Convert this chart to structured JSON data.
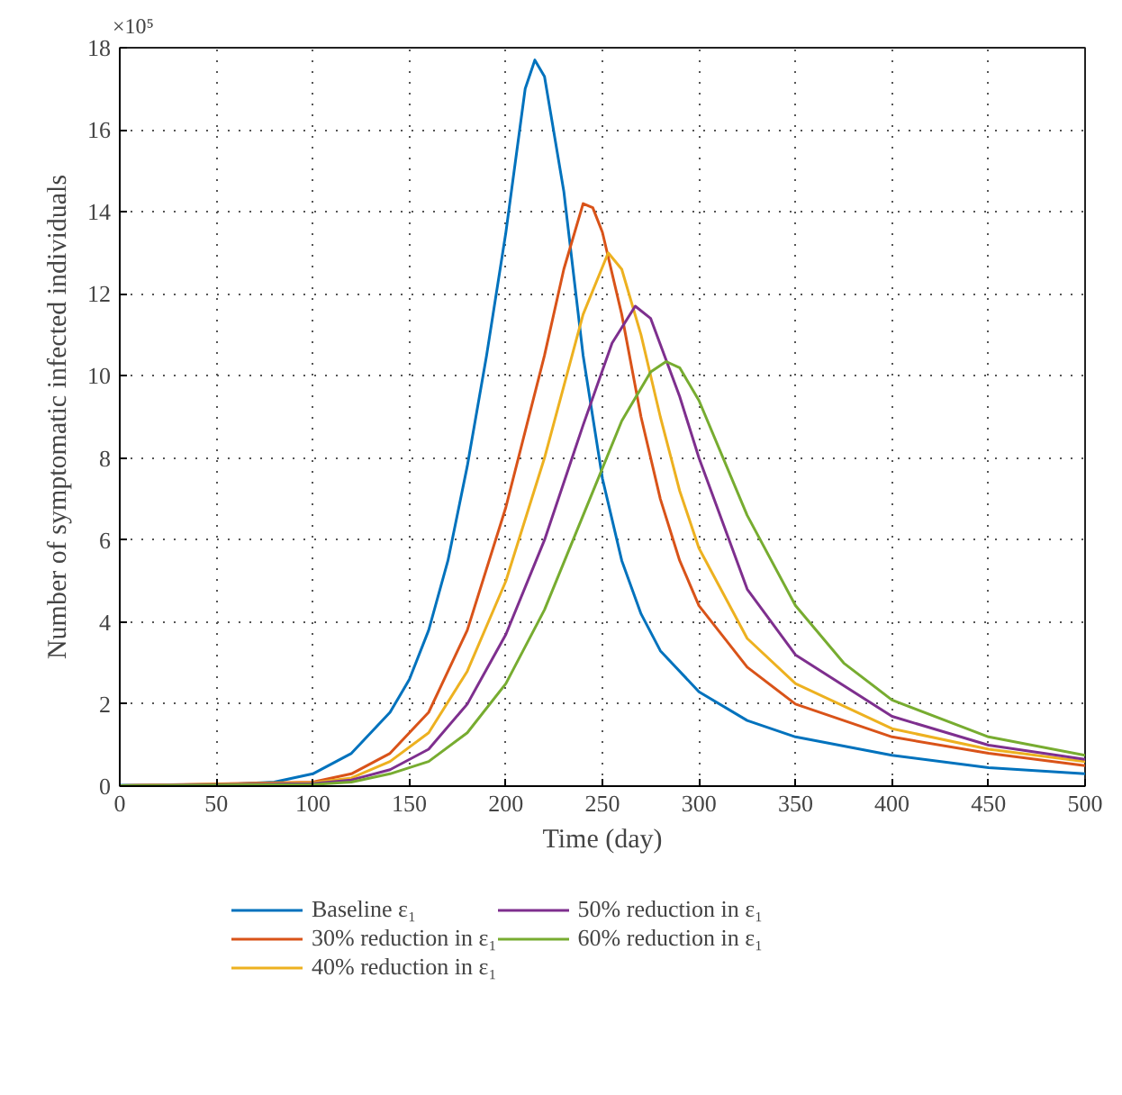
{
  "chart_data": {
    "type": "line",
    "xlabel": "Time (day)",
    "ylabel": "Number of symptomatic infected individuals",
    "annotations": [
      "×10⁵"
    ],
    "xlim": [
      0,
      500
    ],
    "ylim": [
      0,
      18
    ],
    "xticks": [
      0,
      50,
      100,
      150,
      200,
      250,
      300,
      350,
      400,
      450,
      500
    ],
    "yticks": [
      0,
      2,
      4,
      6,
      8,
      10,
      12,
      14,
      16,
      18
    ],
    "grid": true,
    "legend": "bottom",
    "line_style": "solid",
    "series": [
      {
        "name": "Baseline ε₁",
        "color": "#0072bd",
        "x": [
          0,
          50,
          80,
          100,
          120,
          140,
          150,
          160,
          170,
          180,
          190,
          200,
          210,
          215,
          220,
          230,
          240,
          250,
          260,
          270,
          280,
          300,
          325,
          350,
          400,
          450,
          500
        ],
        "values": [
          0.02,
          0.03,
          0.1,
          0.3,
          0.8,
          1.8,
          2.6,
          3.8,
          5.5,
          7.8,
          10.5,
          13.5,
          17.0,
          17.7,
          17.3,
          14.5,
          10.5,
          7.5,
          5.5,
          4.2,
          3.3,
          2.3,
          1.6,
          1.2,
          0.75,
          0.45,
          0.3
        ]
      },
      {
        "name": "30% reduction in ε₁",
        "color": "#d95319",
        "x": [
          0,
          100,
          120,
          140,
          160,
          180,
          200,
          220,
          230,
          240,
          245,
          250,
          260,
          270,
          280,
          290,
          300,
          325,
          350,
          400,
          450,
          500
        ],
        "values": [
          0.01,
          0.1,
          0.3,
          0.8,
          1.8,
          3.8,
          6.8,
          10.5,
          12.6,
          14.2,
          14.1,
          13.5,
          11.5,
          9.0,
          7.0,
          5.5,
          4.4,
          2.9,
          2.0,
          1.2,
          0.8,
          0.5
        ]
      },
      {
        "name": "40% reduction in ε₁",
        "color": "#edb120",
        "x": [
          0,
          100,
          120,
          140,
          160,
          180,
          200,
          220,
          240,
          253,
          260,
          270,
          280,
          290,
          300,
          325,
          350,
          400,
          450,
          500
        ],
        "values": [
          0.01,
          0.08,
          0.2,
          0.6,
          1.3,
          2.8,
          5.0,
          8.0,
          11.5,
          13.0,
          12.6,
          11.0,
          9.0,
          7.2,
          5.8,
          3.6,
          2.5,
          1.4,
          0.9,
          0.6
        ]
      },
      {
        "name": "50% reduction in ε₁",
        "color": "#7e2f8e",
        "x": [
          0,
          100,
          120,
          140,
          160,
          180,
          200,
          220,
          240,
          255,
          267,
          275,
          290,
          300,
          325,
          350,
          400,
          450,
          500
        ],
        "values": [
          0.01,
          0.06,
          0.15,
          0.4,
          0.9,
          2.0,
          3.7,
          6.0,
          8.8,
          10.8,
          11.7,
          11.4,
          9.5,
          8.0,
          4.8,
          3.2,
          1.7,
          1.0,
          0.65
        ]
      },
      {
        "name": "60% reduction in ε₁",
        "color": "#77ac30",
        "x": [
          0,
          100,
          120,
          140,
          160,
          180,
          200,
          220,
          240,
          260,
          275,
          283,
          290,
          300,
          325,
          350,
          375,
          400,
          450,
          500
        ],
        "values": [
          0.01,
          0.04,
          0.1,
          0.3,
          0.6,
          1.3,
          2.5,
          4.3,
          6.6,
          8.9,
          10.1,
          10.35,
          10.2,
          9.4,
          6.6,
          4.4,
          3.0,
          2.1,
          1.2,
          0.75
        ]
      }
    ]
  }
}
